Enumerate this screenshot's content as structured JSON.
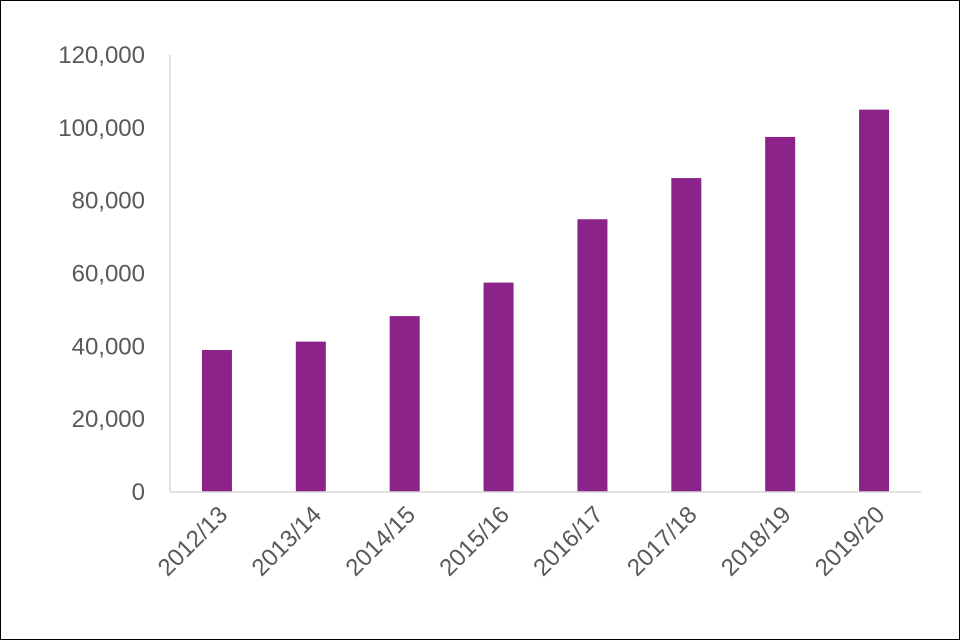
{
  "chart_data": {
    "type": "bar",
    "title": "",
    "xlabel": "",
    "ylabel": "",
    "categories": [
      "2012/13",
      "2013/14",
      "2014/15",
      "2015/16",
      "2016/17",
      "2017/18",
      "2018/19",
      "2019/20"
    ],
    "values": [
      39000,
      41300,
      48300,
      57500,
      74900,
      86200,
      97500,
      105000
    ],
    "ylim": [
      0,
      120000
    ],
    "yticks": [
      0,
      20000,
      40000,
      60000,
      80000,
      100000,
      120000
    ],
    "ytick_labels": [
      "0",
      "20,000",
      "40,000",
      "60,000",
      "80,000",
      "100,000",
      "120,000"
    ],
    "grid": false,
    "legend": "none",
    "bar_color": "#8B2388",
    "axis_color": "#D9D9D9",
    "label_color": "#595959"
  }
}
